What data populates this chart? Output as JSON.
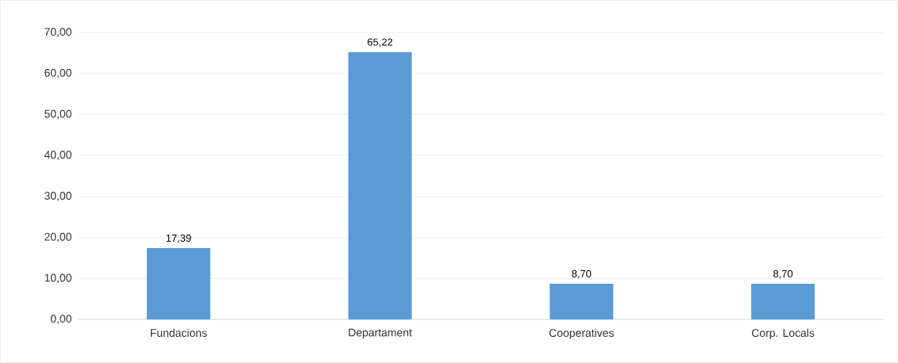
{
  "chart_data": {
    "type": "bar",
    "categories": [
      "Fundacions",
      "Departament",
      "Cooperatives",
      "Corp. Locals"
    ],
    "values": [
      17.39,
      65.22,
      8.7,
      8.7
    ],
    "value_labels": [
      "17,39",
      "65,22",
      "8,70",
      "8,70"
    ],
    "color": "#5b9bd5",
    "ylim": [
      0,
      70
    ],
    "yticks": [
      {
        "value": 0,
        "label": "0,00"
      },
      {
        "value": 10,
        "label": "10,00"
      },
      {
        "value": 20,
        "label": "20,00"
      },
      {
        "value": 30,
        "label": "30,00"
      },
      {
        "value": 40,
        "label": "40,00"
      },
      {
        "value": 50,
        "label": "50,00"
      },
      {
        "value": 60,
        "label": "60,00"
      },
      {
        "value": 70,
        "label": "70,00"
      }
    ],
    "grid": "y"
  }
}
